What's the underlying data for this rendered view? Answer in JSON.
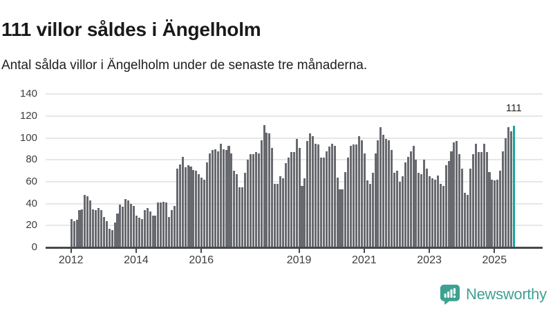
{
  "header": {
    "title": "111 villor såldes i Ängelholm",
    "subtitle": "Antal sålda villor i Ängelholm under de senaste tre månaderna."
  },
  "chart_data": {
    "type": "bar",
    "title": "111 villor såldes i Ängelholm",
    "subtitle": "Antal sålda villor i Ängelholm under de senaste tre månaderna.",
    "unit": "villor",
    "start_month": "2012-01",
    "end_month": "2025-08",
    "values": [
      26,
      24,
      25,
      34,
      35,
      48,
      47,
      43,
      35,
      34,
      36,
      34,
      28,
      24,
      17,
      16,
      23,
      31,
      39,
      37,
      44,
      43,
      40,
      38,
      29,
      27,
      26,
      34,
      36,
      33,
      29,
      29,
      41,
      41,
      42,
      41,
      28,
      34,
      38,
      72,
      76,
      83,
      73,
      75,
      74,
      71,
      70,
      67,
      64,
      62,
      78,
      86,
      89,
      90,
      88,
      95,
      90,
      89,
      93,
      86,
      70,
      67,
      55,
      55,
      68,
      80,
      85,
      85,
      87,
      86,
      98,
      112,
      105,
      104,
      91,
      58,
      58,
      65,
      63,
      77,
      82,
      87,
      87,
      99,
      91,
      56,
      63,
      97,
      104,
      102,
      95,
      94,
      82,
      82,
      88,
      92,
      95,
      93,
      64,
      53,
      53,
      69,
      82,
      93,
      94,
      94,
      102,
      98,
      86,
      61,
      58,
      68,
      86,
      98,
      110,
      103,
      99,
      98,
      89,
      68,
      70,
      60,
      65,
      78,
      83,
      88,
      93,
      80,
      68,
      67,
      80,
      72,
      65,
      63,
      62,
      66,
      58,
      56,
      75,
      79,
      88,
      96,
      97,
      85,
      72,
      50,
      48,
      72,
      85,
      95,
      87,
      87,
      95,
      87,
      69,
      62,
      61,
      62,
      70,
      88,
      100,
      110,
      106,
      111
    ],
    "ylim": [
      0,
      140
    ],
    "yticks": [
      0,
      20,
      40,
      60,
      80,
      100,
      120,
      140
    ],
    "xticks": [
      {
        "label": "2012",
        "month_index": 0
      },
      {
        "label": "2014",
        "month_index": 24
      },
      {
        "label": "2016",
        "month_index": 48
      },
      {
        "label": "2019",
        "month_index": 84
      },
      {
        "label": "2021",
        "month_index": 108
      },
      {
        "label": "2023",
        "month_index": 132
      },
      {
        "label": "2025",
        "month_index": 156
      }
    ],
    "grid": "horizontal",
    "legend": "none",
    "bar_color": "#67696e",
    "highlight": {
      "index": 163,
      "value": 111,
      "color": "#14a6a0",
      "label": "111"
    }
  },
  "annotation": {
    "text": "111"
  },
  "footer": {
    "brand": "Newsworthy",
    "brand_color": "#3fa092",
    "logo_icon": "newsworthy-speech-bubble-bar-chart-icon"
  }
}
